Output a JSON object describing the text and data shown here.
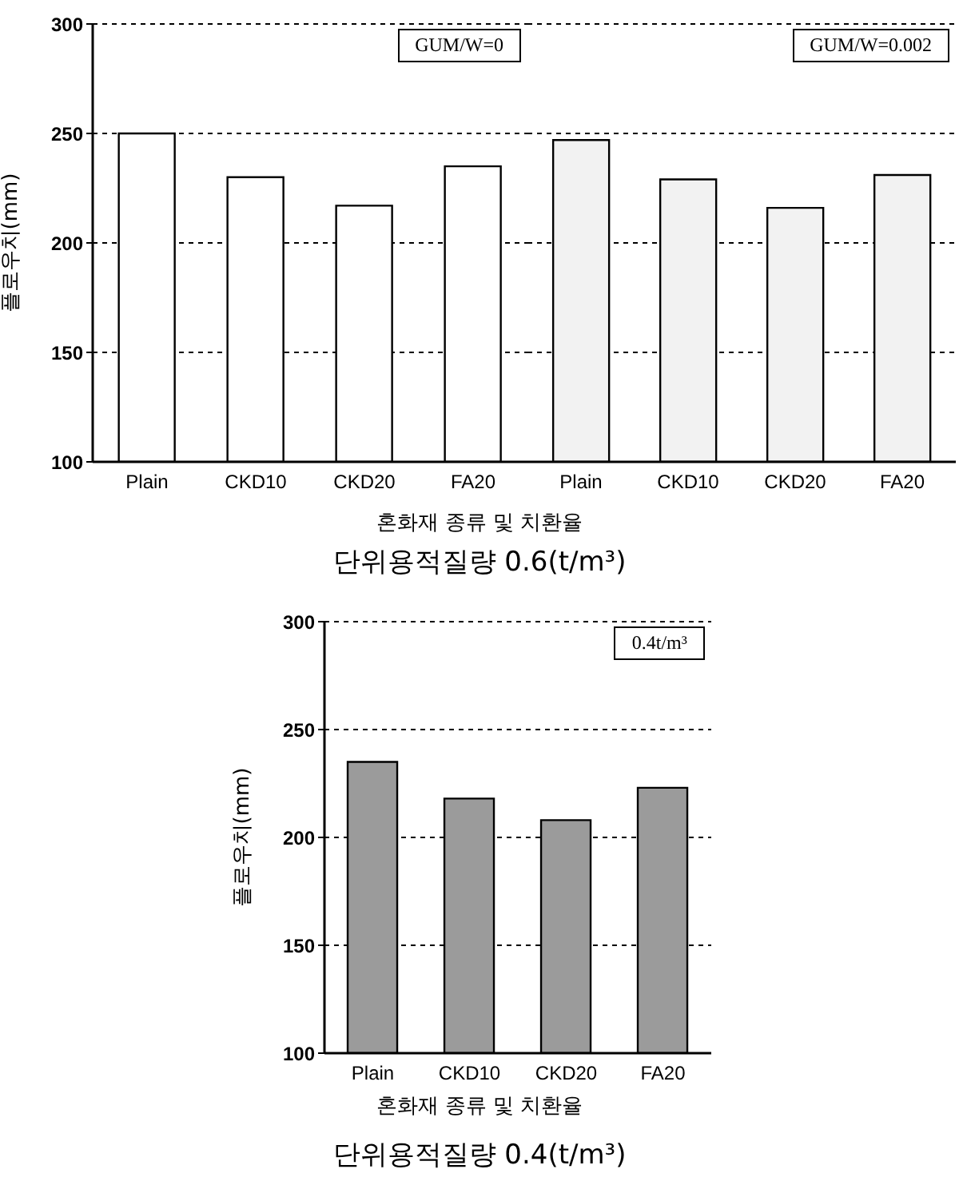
{
  "chart_data": [
    {
      "type": "bar",
      "categories": [
        "Plain",
        "CKD10",
        "CKD20",
        "FA20"
      ],
      "values": [
        250,
        230,
        217,
        235
      ],
      "color": "#ffffff",
      "ylim": [
        100,
        300
      ],
      "yticks": [
        100,
        150,
        200,
        250,
        300
      ],
      "grid": "y",
      "ylabel": "플로우치(mm)",
      "xlabel": "혼화재 종류 및 치환율",
      "annotations": [
        "GUM/W=0",
        "단위용적질량 0.6(t/m³)"
      ]
    },
    {
      "type": "bar",
      "categories": [
        "Plain",
        "CKD10",
        "CKD20",
        "FA20"
      ],
      "values": [
        247,
        229,
        216,
        231
      ],
      "color": "#f2f2f2",
      "ylim": [
        100,
        300
      ],
      "yticks": [
        100,
        150,
        200,
        250,
        300
      ],
      "grid": "y",
      "tick_labels": "x",
      "annotations": [
        "GUM/W=0.002"
      ]
    },
    {
      "type": "bar",
      "categories": [
        "Plain",
        "CKD10",
        "CKD20",
        "FA20"
      ],
      "values": [
        235,
        218,
        208,
        223
      ],
      "color": "#9b9b9b",
      "ylim": [
        100,
        300
      ],
      "yticks": [
        100,
        150,
        200,
        250,
        300
      ],
      "grid": "y",
      "ylabel": "플로우치(mm)",
      "xlabel": "혼화재 종류 및 치환율",
      "annotations": [
        "0.4t/m³",
        "단위용적질량 0.4(t/m³)"
      ]
    }
  ]
}
